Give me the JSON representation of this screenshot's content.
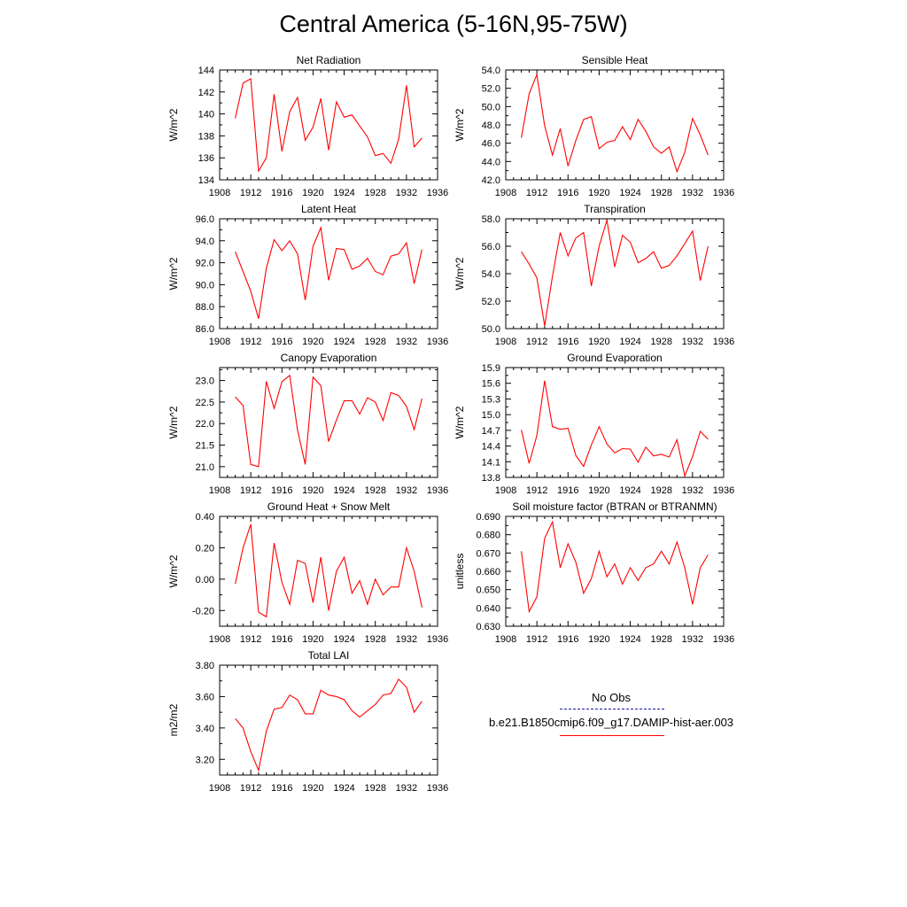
{
  "title": "Central America (5-16N,95-75W)",
  "line_color": "#ff0000",
  "obs_color": "#1a1aa6",
  "legend": {
    "obs_label": "No Obs",
    "model_label": "b.e21.B1850cmip6.f09_g17.DAMIP-hist-aer.003"
  },
  "chart_data": [
    {
      "type": "line",
      "title": "Net Radiation",
      "ylabel": "W/m^2",
      "xlim": [
        1908,
        1936
      ],
      "ylim": [
        134,
        144
      ],
      "xticks": [
        1908,
        1912,
        1916,
        1920,
        1924,
        1928,
        1932,
        1936
      ],
      "yticks": [
        134,
        136,
        138,
        140,
        142,
        144
      ],
      "ytick_labels": [
        "134",
        "136",
        "138",
        "140",
        "142",
        "144"
      ],
      "x": [
        1910,
        1911,
        1912,
        1913,
        1914,
        1915,
        1916,
        1917,
        1918,
        1919,
        1920,
        1921,
        1922,
        1923,
        1924,
        1925,
        1926,
        1927,
        1928,
        1929,
        1930,
        1931,
        1932,
        1933,
        1934
      ],
      "values": [
        139.6,
        142.8,
        143.2,
        134.8,
        136.0,
        141.8,
        136.6,
        140.2,
        141.5,
        137.6,
        138.8,
        141.4,
        136.7,
        141.1,
        139.7,
        139.9,
        138.9,
        137.9,
        136.2,
        136.4,
        135.5,
        137.7,
        142.6,
        137.0,
        137.8
      ]
    },
    {
      "type": "line",
      "title": "Sensible Heat",
      "ylabel": "W/m^2",
      "xlim": [
        1908,
        1936
      ],
      "ylim": [
        42,
        54
      ],
      "xticks": [
        1908,
        1912,
        1916,
        1920,
        1924,
        1928,
        1932,
        1936
      ],
      "yticks": [
        42,
        44,
        46,
        48,
        50,
        52,
        54
      ],
      "ytick_labels": [
        "42.0",
        "44.0",
        "46.0",
        "48.0",
        "50.0",
        "52.0",
        "54.0"
      ],
      "x": [
        1910,
        1911,
        1912,
        1913,
        1914,
        1915,
        1916,
        1917,
        1918,
        1919,
        1920,
        1921,
        1922,
        1923,
        1924,
        1925,
        1926,
        1927,
        1928,
        1929,
        1930,
        1931,
        1932,
        1933,
        1934
      ],
      "values": [
        46.6,
        51.4,
        53.5,
        47.9,
        44.7,
        47.6,
        43.5,
        46.3,
        48.6,
        48.9,
        45.4,
        46.1,
        46.3,
        47.8,
        46.4,
        48.6,
        47.3,
        45.6,
        44.9,
        45.6,
        42.9,
        45.0,
        48.7,
        46.9,
        44.7
      ]
    },
    {
      "type": "line",
      "title": "Latent Heat",
      "ylabel": "W/m^2",
      "xlim": [
        1908,
        1936
      ],
      "ylim": [
        86,
        96
      ],
      "xticks": [
        1908,
        1912,
        1916,
        1920,
        1924,
        1928,
        1932,
        1936
      ],
      "yticks": [
        86,
        88,
        90,
        92,
        94,
        96
      ],
      "ytick_labels": [
        "86.0",
        "88.0",
        "90.0",
        "92.0",
        "94.0",
        "96.0"
      ],
      "x": [
        1910,
        1911,
        1912,
        1913,
        1914,
        1915,
        1916,
        1917,
        1918,
        1919,
        1920,
        1921,
        1922,
        1923,
        1924,
        1925,
        1926,
        1927,
        1928,
        1929,
        1930,
        1931,
        1932,
        1933,
        1934
      ],
      "values": [
        93.0,
        91.2,
        89.4,
        86.9,
        91.5,
        94.1,
        93.1,
        94.0,
        92.8,
        88.6,
        93.5,
        95.2,
        90.4,
        93.3,
        93.2,
        91.4,
        91.7,
        92.4,
        91.2,
        90.9,
        92.6,
        92.8,
        93.8,
        90.1,
        93.2
      ]
    },
    {
      "type": "line",
      "title": "Transpiration",
      "ylabel": "W/m^2",
      "xlim": [
        1908,
        1936
      ],
      "ylim": [
        50,
        58
      ],
      "xticks": [
        1908,
        1912,
        1916,
        1920,
        1924,
        1928,
        1932,
        1936
      ],
      "yticks": [
        50,
        52,
        54,
        56,
        58
      ],
      "ytick_labels": [
        "50.0",
        "52.0",
        "54.0",
        "56.0",
        "58.0"
      ],
      "x": [
        1910,
        1911,
        1912,
        1913,
        1914,
        1915,
        1916,
        1917,
        1918,
        1919,
        1920,
        1921,
        1922,
        1923,
        1924,
        1925,
        1926,
        1927,
        1928,
        1929,
        1930,
        1931,
        1932,
        1933,
        1934
      ],
      "values": [
        55.6,
        54.7,
        53.7,
        50.2,
        53.8,
        57.0,
        55.3,
        56.6,
        57.0,
        53.1,
        56.0,
        57.9,
        54.5,
        56.8,
        56.3,
        54.8,
        55.1,
        55.6,
        54.4,
        54.6,
        55.3,
        56.2,
        57.1,
        53.5,
        56.0
      ]
    },
    {
      "type": "line",
      "title": "Canopy Evaporation",
      "ylabel": "W/m^2",
      "xlim": [
        1908,
        1936
      ],
      "ylim": [
        20.75,
        23.3
      ],
      "xticks": [
        1908,
        1912,
        1916,
        1920,
        1924,
        1928,
        1932,
        1936
      ],
      "yticks": [
        21.0,
        21.5,
        22.0,
        22.5,
        23.0
      ],
      "ytick_labels": [
        "21.0",
        "21.5",
        "22.0",
        "22.5",
        "23.0"
      ],
      "x": [
        1910,
        1911,
        1912,
        1913,
        1914,
        1915,
        1916,
        1917,
        1918,
        1919,
        1920,
        1921,
        1922,
        1923,
        1924,
        1925,
        1926,
        1927,
        1928,
        1929,
        1930,
        1931,
        1932,
        1933,
        1934
      ],
      "values": [
        22.62,
        22.42,
        21.05,
        21.0,
        22.98,
        22.35,
        22.97,
        23.12,
        21.85,
        21.05,
        23.08,
        22.88,
        21.58,
        22.08,
        22.53,
        22.53,
        22.22,
        22.6,
        22.5,
        22.07,
        22.72,
        22.65,
        22.4,
        21.86,
        22.58
      ]
    },
    {
      "type": "line",
      "title": "Ground Evaporation",
      "ylabel": "W/m^2",
      "xlim": [
        1908,
        1936
      ],
      "ylim": [
        13.8,
        15.9
      ],
      "xticks": [
        1908,
        1912,
        1916,
        1920,
        1924,
        1928,
        1932,
        1936
      ],
      "yticks": [
        13.8,
        14.1,
        14.4,
        14.7,
        15.0,
        15.3,
        15.6,
        15.9
      ],
      "ytick_labels": [
        "13.8",
        "14.1",
        "14.4",
        "14.7",
        "15.0",
        "15.3",
        "15.6",
        "15.9"
      ],
      "x": [
        1910,
        1911,
        1912,
        1913,
        1914,
        1915,
        1916,
        1917,
        1918,
        1919,
        1920,
        1921,
        1922,
        1923,
        1924,
        1925,
        1926,
        1927,
        1928,
        1929,
        1930,
        1931,
        1932,
        1933,
        1934
      ],
      "values": [
        14.71,
        14.07,
        14.6,
        15.65,
        14.77,
        14.72,
        14.74,
        14.22,
        14.01,
        14.42,
        14.77,
        14.44,
        14.27,
        14.35,
        14.34,
        14.09,
        14.38,
        14.21,
        14.24,
        14.19,
        14.52,
        13.83,
        14.2,
        14.68,
        14.53
      ]
    },
    {
      "type": "line",
      "title": "Ground Heat + Snow Melt",
      "ylabel": "W/m^2",
      "xlim": [
        1908,
        1936
      ],
      "ylim": [
        -0.3,
        0.4
      ],
      "xticks": [
        1908,
        1912,
        1916,
        1920,
        1924,
        1928,
        1932,
        1936
      ],
      "yticks": [
        -0.2,
        0.0,
        0.2,
        0.4
      ],
      "ytick_labels": [
        "-0.20",
        "0.00",
        "0.20",
        "0.40"
      ],
      "x": [
        1910,
        1911,
        1912,
        1913,
        1914,
        1915,
        1916,
        1917,
        1918,
        1919,
        1920,
        1921,
        1922,
        1923,
        1924,
        1925,
        1926,
        1927,
        1928,
        1929,
        1930,
        1931,
        1932,
        1933,
        1934
      ],
      "values": [
        -0.03,
        0.2,
        0.35,
        -0.21,
        -0.24,
        0.23,
        -0.02,
        -0.16,
        0.12,
        0.1,
        -0.15,
        0.14,
        -0.2,
        0.05,
        0.14,
        -0.09,
        -0.01,
        -0.16,
        0.0,
        -0.1,
        -0.05,
        -0.05,
        0.2,
        0.05,
        -0.18
      ]
    },
    {
      "type": "line",
      "title": "Soil moisture factor (BTRAN or BTRANMN)",
      "ylabel": "unitless",
      "xlim": [
        1908,
        1936
      ],
      "ylim": [
        0.63,
        0.69
      ],
      "xticks": [
        1908,
        1912,
        1916,
        1920,
        1924,
        1928,
        1932,
        1936
      ],
      "yticks": [
        0.63,
        0.64,
        0.65,
        0.66,
        0.67,
        0.68,
        0.69
      ],
      "ytick_labels": [
        "0.630",
        "0.640",
        "0.650",
        "0.660",
        "0.670",
        "0.680",
        "0.690"
      ],
      "x": [
        1910,
        1911,
        1912,
        1913,
        1914,
        1915,
        1916,
        1917,
        1918,
        1919,
        1920,
        1921,
        1922,
        1923,
        1924,
        1925,
        1926,
        1927,
        1928,
        1929,
        1930,
        1931,
        1932,
        1933,
        1934
      ],
      "values": [
        0.671,
        0.638,
        0.646,
        0.678,
        0.687,
        0.662,
        0.675,
        0.665,
        0.648,
        0.656,
        0.671,
        0.657,
        0.664,
        0.653,
        0.662,
        0.655,
        0.662,
        0.664,
        0.671,
        0.664,
        0.676,
        0.662,
        0.642,
        0.662,
        0.669
      ]
    },
    {
      "type": "line",
      "title": "Total LAI",
      "ylabel": "m2/m2",
      "xlim": [
        1908,
        1936
      ],
      "ylim": [
        3.1,
        3.8
      ],
      "xticks": [
        1908,
        1912,
        1916,
        1920,
        1924,
        1928,
        1932,
        1936
      ],
      "yticks": [
        3.2,
        3.4,
        3.6,
        3.8
      ],
      "ytick_labels": [
        "3.20",
        "3.40",
        "3.60",
        "3.80"
      ],
      "x": [
        1910,
        1911,
        1912,
        1913,
        1914,
        1915,
        1916,
        1917,
        1918,
        1919,
        1920,
        1921,
        1922,
        1923,
        1924,
        1925,
        1926,
        1927,
        1928,
        1929,
        1930,
        1931,
        1932,
        1933,
        1934
      ],
      "values": [
        3.46,
        3.4,
        3.25,
        3.13,
        3.38,
        3.52,
        3.53,
        3.61,
        3.58,
        3.49,
        3.49,
        3.64,
        3.61,
        3.6,
        3.58,
        3.51,
        3.47,
        3.51,
        3.55,
        3.61,
        3.62,
        3.71,
        3.66,
        3.5,
        3.57
      ]
    }
  ]
}
